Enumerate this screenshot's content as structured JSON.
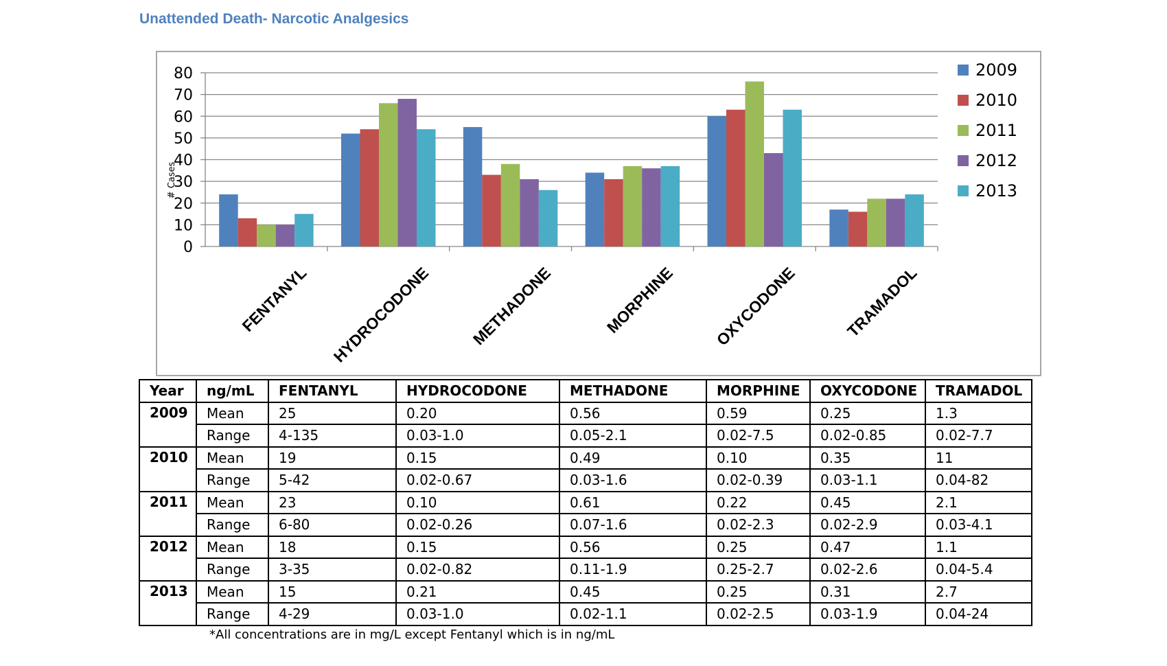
{
  "title": "Unattended Death- Narcotic Analgesics",
  "chart_data": {
    "type": "bar",
    "categories": [
      "FENTANYL",
      "HYDROCODONE",
      "METHADONE",
      "MORPHINE",
      "OXYCODONE",
      "TRAMADOL"
    ],
    "series": [
      {
        "name": "2009",
        "color": "#4f81bd",
        "values": [
          24,
          52,
          55,
          34,
          60,
          17
        ]
      },
      {
        "name": "2010",
        "color": "#c0504d",
        "values": [
          13,
          54,
          33,
          31,
          63,
          16
        ]
      },
      {
        "name": "2011",
        "color": "#9bbb59",
        "values": [
          10,
          66,
          38,
          37,
          76,
          22
        ]
      },
      {
        "name": "2012",
        "color": "#8064a2",
        "values": [
          10,
          68,
          31,
          36,
          43,
          22
        ]
      },
      {
        "name": "2013",
        "color": "#4bacc6",
        "values": [
          15,
          54,
          26,
          37,
          63,
          24
        ]
      }
    ],
    "xlabel": "",
    "ylabel": "# Cases",
    "ylim": [
      0,
      80
    ],
    "yticks": [
      0,
      10,
      20,
      30,
      40,
      50,
      60,
      70,
      80
    ],
    "grid": true,
    "legend": "right"
  },
  "table": {
    "headers": [
      "Year",
      "ng/mL",
      "FENTANYL",
      "HYDROCODONE",
      "METHADONE",
      "MORPHINE",
      "OXYCODONE",
      "TRAMADOL"
    ],
    "groups": [
      {
        "year": "2009",
        "rows": [
          {
            "stat": "Mean",
            "values": [
              "25",
              "0.20",
              "0.56",
              "0.59",
              "0.25",
              "1.3"
            ]
          },
          {
            "stat": "Range",
            "values": [
              "4-135",
              "0.03-1.0",
              "0.05-2.1",
              "0.02-7.5",
              "0.02-0.85",
              "0.02-7.7"
            ]
          }
        ]
      },
      {
        "year": "2010",
        "rows": [
          {
            "stat": "Mean",
            "values": [
              "19",
              "0.15",
              "0.49",
              "0.10",
              "0.35",
              "11"
            ]
          },
          {
            "stat": "Range",
            "values": [
              "5-42",
              "0.02-0.67",
              "0.03-1.6",
              "0.02-0.39",
              "0.03-1.1",
              "0.04-82"
            ]
          }
        ]
      },
      {
        "year": "2011",
        "rows": [
          {
            "stat": "Mean",
            "values": [
              "23",
              "0.10",
              "0.61",
              "0.22",
              "0.45",
              "2.1"
            ]
          },
          {
            "stat": "Range",
            "values": [
              "6-80",
              "0.02-0.26",
              "0.07-1.6",
              "0.02-2.3",
              "0.02-2.9",
              "0.03-4.1"
            ]
          }
        ]
      },
      {
        "year": "2012",
        "rows": [
          {
            "stat": "Mean",
            "values": [
              "18",
              "0.15",
              "0.56",
              "0.25",
              "0.47",
              "1.1"
            ]
          },
          {
            "stat": "Range",
            "values": [
              "3-35",
              "0.02-0.82",
              "0.11-1.9",
              "0.25-2.7",
              "0.02-2.6",
              "0.04-5.4"
            ]
          }
        ]
      },
      {
        "year": "2013",
        "rows": [
          {
            "stat": "Mean",
            "values": [
              "15",
              "0.21",
              "0.45",
              "0.25",
              "0.31",
              "2.7"
            ]
          },
          {
            "stat": "Range",
            "values": [
              "4-29",
              "0.03-1.0",
              "0.02-1.1",
              "0.02-2.5",
              "0.03-1.9",
              "0.04-24"
            ]
          }
        ]
      }
    ]
  },
  "footnote": "*All concentrations are in mg/L except Fentanyl which is in ng/mL"
}
